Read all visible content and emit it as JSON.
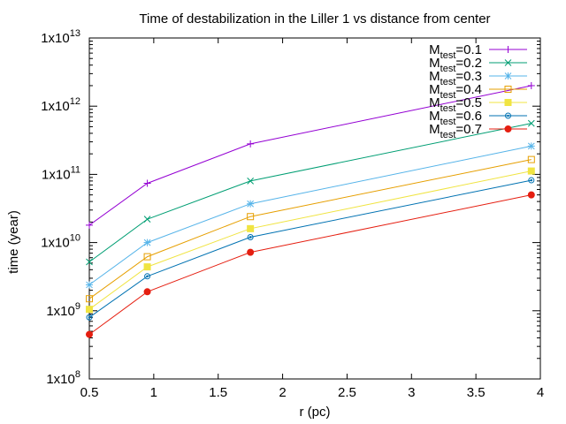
{
  "chart_data": {
    "type": "line",
    "title": "Time of destabilization in the Liller 1 vs distance from center",
    "xlabel": "r (pc)",
    "ylabel": "time (year)",
    "xlim": [
      0.5,
      4
    ],
    "ylim": [
      100000000.0,
      10000000000000.0
    ],
    "y_scale": "log",
    "grid": false,
    "legend_position": "top-right",
    "x_ticks": [
      "0.5",
      "1",
      "1.5",
      "2",
      "2.5",
      "3",
      "3.5",
      "4"
    ],
    "y_ticks": [
      {
        "base": "1x10",
        "exp": "8"
      },
      {
        "base": "1x10",
        "exp": "9"
      },
      {
        "base": "1x10",
        "exp": "10"
      },
      {
        "base": "1x10",
        "exp": "11"
      },
      {
        "base": "1x10",
        "exp": "12"
      },
      {
        "base": "1x10",
        "exp": "13"
      }
    ],
    "x": [
      0.5,
      0.95,
      1.75,
      3.93
    ],
    "series": [
      {
        "name_base": "M",
        "name_sub": "test",
        "name_value": "=0.1",
        "color": "#9400d3",
        "marker": "plus",
        "values": [
          18000000000.0,
          74000000000.0,
          280000000000.0,
          2000000000000.0
        ]
      },
      {
        "name_base": "M",
        "name_sub": "test",
        "name_value": "=0.2",
        "color": "#009e73",
        "marker": "cross",
        "values": [
          5200000000.0,
          22000000000.0,
          80000000000.0,
          560000000000.0
        ]
      },
      {
        "name_base": "M",
        "name_sub": "test",
        "name_value": "=0.3",
        "color": "#56b4e9",
        "marker": "star",
        "values": [
          2400000000.0,
          10000000000.0,
          37000000000.0,
          260000000000.0
        ]
      },
      {
        "name_base": "M",
        "name_sub": "test",
        "name_value": "=0.4",
        "color": "#e69f00",
        "marker": "square-open",
        "values": [
          1500000000.0,
          6200000000.0,
          24000000000.0,
          165000000000.0
        ]
      },
      {
        "name_base": "M",
        "name_sub": "test",
        "name_value": "=0.5",
        "color": "#f0e442",
        "marker": "square-filled",
        "values": [
          1050000000.0,
          4400000000.0,
          16000000000.0,
          112000000000.0
        ]
      },
      {
        "name_base": "M",
        "name_sub": "test",
        "name_value": "=0.6",
        "color": "#0072b2",
        "marker": "circle-open",
        "values": [
          800000000.0,
          3200000000.0,
          12000000000.0,
          82000000000.0
        ]
      },
      {
        "name_base": "M",
        "name_sub": "test",
        "name_value": "=0.7",
        "color": "#e51e10",
        "marker": "circle-filled",
        "values": [
          450000000.0,
          1900000000.0,
          7200000000.0,
          50000000000.0
        ]
      }
    ]
  }
}
